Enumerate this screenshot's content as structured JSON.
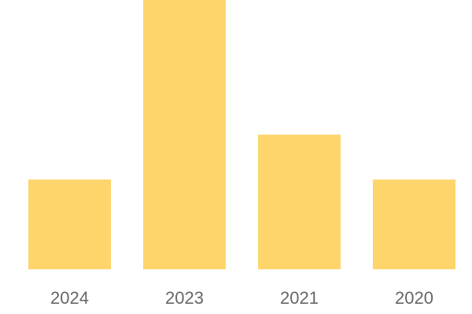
{
  "chart_data": {
    "type": "bar",
    "categories": [
      "2024",
      "2023",
      "2021",
      "2020"
    ],
    "values": [
      2,
      6,
      3,
      2
    ],
    "title": "",
    "xlabel": "",
    "ylabel": "",
    "ylim": [
      0,
      6
    ],
    "grid": false,
    "bar_color": "#FDD56B",
    "tick_label_color": "#666666"
  }
}
